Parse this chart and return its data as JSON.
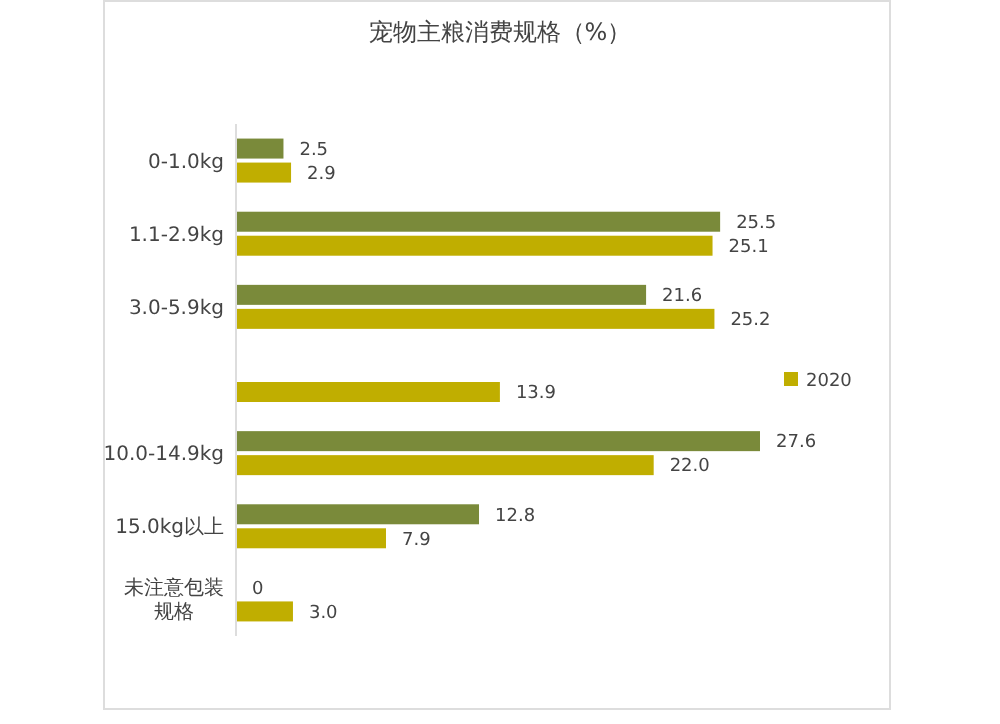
{
  "chart_data": {
    "type": "bar",
    "orientation": "horizontal",
    "title": "宠物主粮消费规格（%）",
    "categories": [
      "0-1.0kg",
      "1.1-2.9kg",
      "3.0-5.9kg",
      null,
      "10.0-14.9kg",
      "15.0kg以上",
      "未注意包装规格"
    ],
    "series": [
      {
        "color": "#7a8a3a",
        "values": [
          2.5,
          25.5,
          21.6,
          null,
          27.6,
          12.8,
          0
        ],
        "value_labels": [
          "2.5",
          "25.5",
          "21.6",
          null,
          "27.6",
          "12.8",
          "0"
        ]
      },
      {
        "name": "2020",
        "color": "#c0ae00",
        "values": [
          2.9,
          25.1,
          25.2,
          13.9,
          22.0,
          7.9,
          3.0
        ],
        "value_labels": [
          "2.9",
          "25.1",
          "25.2",
          "13.9",
          "22.0",
          "7.9",
          "3.0"
        ]
      }
    ],
    "legend": "right"
  }
}
